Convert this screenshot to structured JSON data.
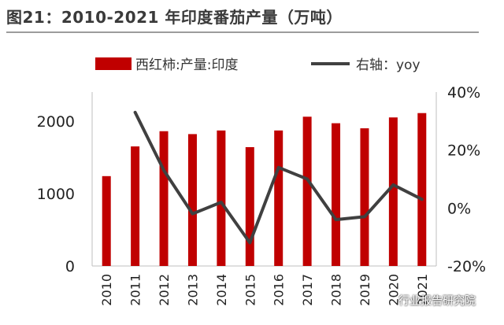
{
  "title": "图21：2010-2021 年印度番茄产量（万吨）",
  "watermark": "行业报告研究院",
  "chart_data": {
    "type": "bar",
    "categories": [
      "2010",
      "2011",
      "2012",
      "2013",
      "2014",
      "2015",
      "2016",
      "2017",
      "2018",
      "2019",
      "2020",
      "2021"
    ],
    "series": [
      {
        "name": "西红柿:产量:印度",
        "type": "bar",
        "axis": "left",
        "color": "#c00000",
        "values": [
          1240,
          1650,
          1860,
          1820,
          1870,
          1640,
          1870,
          2060,
          1970,
          1900,
          2050,
          2110
        ]
      },
      {
        "name": "右轴：yoy",
        "type": "line",
        "axis": "right",
        "color": "#404040",
        "values": [
          null,
          33,
          13,
          -2,
          2,
          -12,
          14,
          10,
          -4,
          -3,
          8,
          3
        ]
      }
    ],
    "y_left": {
      "min": 0,
      "max": 2400,
      "ticks": [
        0,
        1000,
        2000
      ]
    },
    "y_right": {
      "min": -20,
      "max": 40,
      "ticks": [
        40,
        20,
        0,
        -20
      ],
      "tick_labels": [
        "40%",
        "20%",
        "0%",
        "-20%"
      ]
    },
    "legend_position": "top",
    "grid": false
  }
}
